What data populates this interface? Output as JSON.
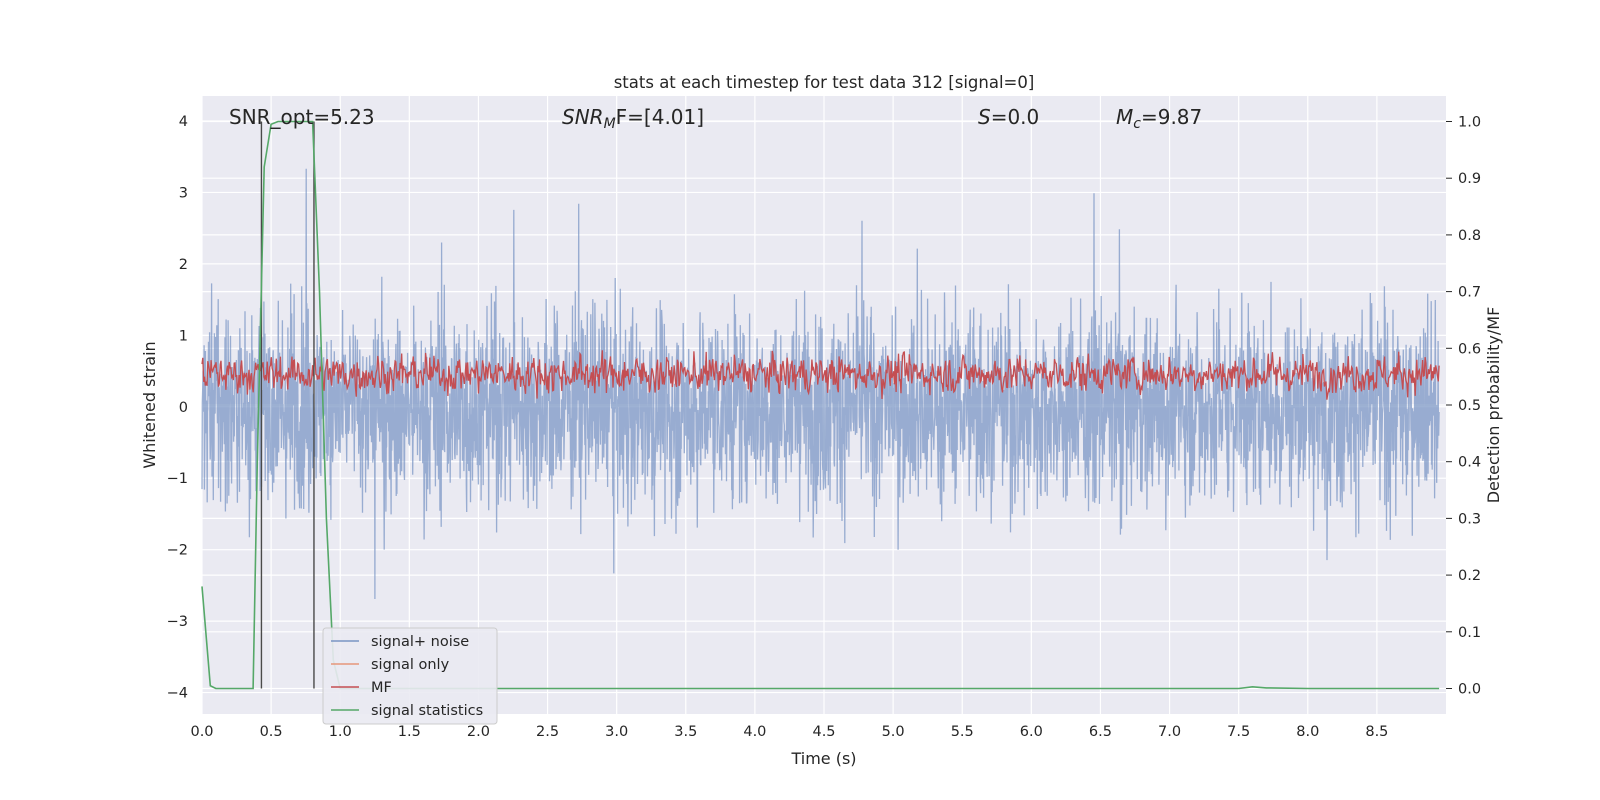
{
  "chart_data": {
    "type": "line",
    "title": "stats at each timestep for test data 312 [signal=0]",
    "xlabel": "Time (s)",
    "ylabel": "Whitened strain",
    "y2label": "Detection probability/MF",
    "xlim": [
      0.0,
      9.0
    ],
    "ylim": [
      -4.3,
      4.35
    ],
    "y2lim": [
      -0.045,
      1.045
    ],
    "xticks": [
      "0.0",
      "0.5",
      "1.0",
      "1.5",
      "2.0",
      "2.5",
      "3.0",
      "3.5",
      "4.0",
      "4.5",
      "5.0",
      "5.5",
      "6.0",
      "6.5",
      "7.0",
      "7.5",
      "8.0",
      "8.5"
    ],
    "yticks": [
      "4",
      "3",
      "2",
      "1",
      "0",
      "−1",
      "−2",
      "−3",
      "−4"
    ],
    "y2ticks": [
      "1.0",
      "0.9",
      "0.8",
      "0.7",
      "0.6",
      "0.5",
      "0.4",
      "0.3",
      "0.2",
      "0.1",
      "0.0"
    ],
    "grid": true,
    "legend_position": "lower-left",
    "annotations": {
      "snr_opt": "SNR_opt=5.23",
      "snr_mf_base": "SNR",
      "snr_mf_sub": "M",
      "snr_mf_rest": "F=[4.01]",
      "s_label": "S",
      "s_value": "=0.0",
      "mc_label": "M",
      "mc_sub": "c",
      "mc_value": "=9.87"
    },
    "vlines_x": [
      0.43,
      0.81
    ],
    "series": [
      {
        "name": "signal+ noise",
        "color": "#7994c3",
        "axis": "left",
        "description": "whitened noise, approx amplitude range -3.5 to 4.0"
      },
      {
        "name": "signal only",
        "color": "#e6967a",
        "axis": "left",
        "values": []
      },
      {
        "name": "MF",
        "color": "#c44e52",
        "axis": "right",
        "description": "matched filter output fluctuating between 0.50 and 0.63"
      },
      {
        "name": "signal statistics",
        "color": "#55a868",
        "axis": "right",
        "x": [
          0.0,
          0.06,
          0.1,
          0.2,
          0.3,
          0.37,
          0.4,
          0.45,
          0.5,
          0.55,
          0.6,
          0.7,
          0.8,
          0.85,
          0.9,
          0.95,
          1.0,
          2.0,
          4.0,
          6.0,
          7.5,
          7.6,
          7.7,
          8.0,
          8.95
        ],
        "values": [
          0.18,
          0.005,
          0.0,
          0.0,
          0.0,
          0.0,
          0.4,
          0.92,
          0.995,
          1.0,
          1.0,
          1.0,
          1.0,
          0.7,
          0.3,
          0.05,
          0.0,
          0.0,
          0.0,
          0.0,
          0.0,
          0.003,
          0.001,
          0.0,
          0.0
        ]
      }
    ]
  }
}
